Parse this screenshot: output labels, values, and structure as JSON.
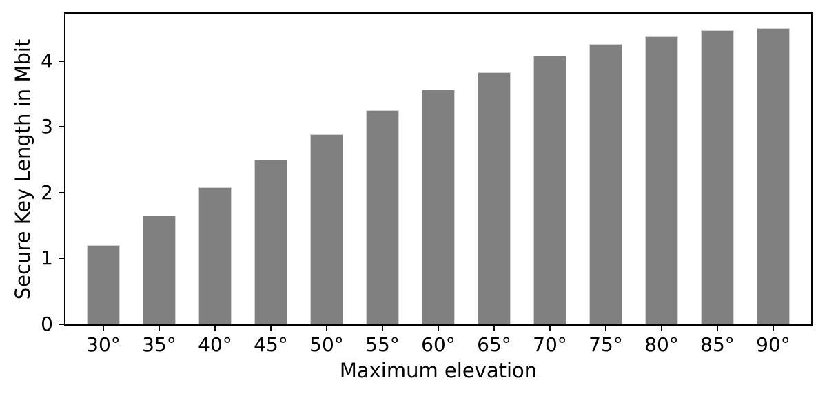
{
  "chart_data": {
    "type": "bar",
    "title": "",
    "xlabel": "Maximum elevation",
    "ylabel": "Secure Key Length in Mbit",
    "categories": [
      "30°",
      "35°",
      "40°",
      "45°",
      "50°",
      "55°",
      "60°",
      "65°",
      "70°",
      "75°",
      "80°",
      "85°",
      "90°"
    ],
    "values": [
      1.2,
      1.65,
      2.08,
      2.5,
      2.89,
      3.25,
      3.57,
      3.83,
      4.08,
      4.26,
      4.38,
      4.47,
      4.5
    ],
    "yticks": [
      "0",
      "1",
      "2",
      "3",
      "4"
    ],
    "ytick_values": [
      0,
      1,
      2,
      3,
      4
    ],
    "ylim": [
      0,
      4.72
    ],
    "bar_color": "#808080",
    "bar_edge_color": "#d3d3d3",
    "axis_color": "#000000",
    "background_color": "#ffffff",
    "grid": false,
    "legend": null
  }
}
